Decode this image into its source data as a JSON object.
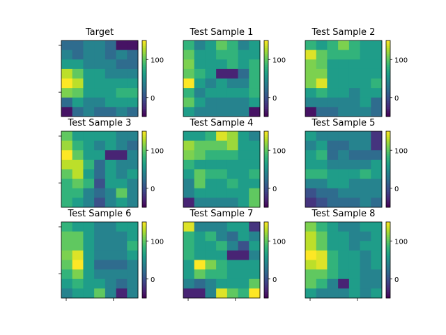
{
  "chart_data": {
    "type": "heatmap",
    "grid": "3x3",
    "colormap": "viridis",
    "vmin": -50,
    "vmax": 150,
    "colorbar_ticks": [
      0,
      100
    ],
    "panels": [
      {
        "title": "Target",
        "values": [
          [
            20,
            20,
            40,
            40,
            20,
            -40,
            -40
          ],
          [
            40,
            20,
            40,
            40,
            20,
            40,
            20
          ],
          [
            60,
            60,
            40,
            40,
            40,
            20,
            20
          ],
          [
            130,
            100,
            60,
            60,
            40,
            40,
            40
          ],
          [
            150,
            130,
            60,
            60,
            60,
            60,
            60
          ],
          [
            110,
            100,
            60,
            60,
            60,
            80,
            80
          ],
          [
            20,
            60,
            40,
            40,
            60,
            60,
            60
          ],
          [
            -40,
            20,
            40,
            20,
            20,
            40,
            20
          ]
        ]
      },
      {
        "title": "Test Sample 1",
        "values": [
          [
            80,
            40,
            60,
            100,
            80,
            40,
            60
          ],
          [
            100,
            60,
            60,
            80,
            80,
            60,
            60
          ],
          [
            110,
            60,
            60,
            60,
            80,
            60,
            80
          ],
          [
            100,
            80,
            60,
            -30,
            -30,
            20,
            80
          ],
          [
            150,
            60,
            40,
            60,
            40,
            40,
            80
          ],
          [
            80,
            40,
            60,
            60,
            60,
            60,
            80
          ],
          [
            100,
            60,
            40,
            40,
            40,
            40,
            60
          ],
          [
            60,
            40,
            40,
            40,
            40,
            40,
            -40
          ]
        ]
      },
      {
        "title": "Test Sample 2",
        "values": [
          [
            80,
            60,
            80,
            110,
            80,
            60,
            60
          ],
          [
            140,
            100,
            80,
            80,
            80,
            60,
            60
          ],
          [
            110,
            100,
            60,
            60,
            60,
            60,
            60
          ],
          [
            110,
            110,
            60,
            60,
            60,
            60,
            60
          ],
          [
            110,
            140,
            60,
            60,
            60,
            60,
            80
          ],
          [
            60,
            80,
            60,
            60,
            40,
            60,
            60
          ],
          [
            40,
            40,
            40,
            40,
            40,
            60,
            20
          ],
          [
            -40,
            20,
            20,
            40,
            40,
            40,
            20
          ]
        ]
      },
      {
        "title": "Test Sample 3",
        "values": [
          [
            100,
            60,
            60,
            60,
            60,
            40,
            40
          ],
          [
            120,
            80,
            60,
            40,
            60,
            40,
            20
          ],
          [
            150,
            100,
            60,
            60,
            -30,
            -30,
            40
          ],
          [
            130,
            130,
            80,
            20,
            60,
            40,
            40
          ],
          [
            100,
            130,
            60,
            20,
            60,
            40,
            60
          ],
          [
            80,
            100,
            80,
            0,
            60,
            60,
            40
          ],
          [
            80,
            80,
            40,
            20,
            40,
            100,
            40
          ],
          [
            80,
            60,
            40,
            0,
            40,
            60,
            40
          ]
        ]
      },
      {
        "title": "Test Sample 4",
        "values": [
          [
            60,
            60,
            80,
            140,
            120,
            60,
            40
          ],
          [
            120,
            100,
            100,
            100,
            120,
            60,
            60
          ],
          [
            110,
            100,
            80,
            80,
            80,
            60,
            60
          ],
          [
            80,
            60,
            60,
            60,
            60,
            60,
            60
          ],
          [
            60,
            100,
            80,
            80,
            60,
            60,
            80
          ],
          [
            40,
            100,
            60,
            60,
            80,
            60,
            60
          ],
          [
            40,
            60,
            60,
            60,
            60,
            60,
            100
          ],
          [
            -30,
            40,
            40,
            40,
            40,
            60,
            100
          ]
        ]
      },
      {
        "title": "Test Sample 5",
        "values": [
          [
            60,
            40,
            40,
            40,
            40,
            40,
            -20
          ],
          [
            40,
            60,
            20,
            20,
            40,
            40,
            -20
          ],
          [
            60,
            80,
            20,
            40,
            20,
            20,
            20
          ],
          [
            60,
            60,
            40,
            40,
            40,
            40,
            60
          ],
          [
            80,
            80,
            60,
            60,
            60,
            80,
            60
          ],
          [
            40,
            40,
            60,
            60,
            40,
            40,
            40
          ],
          [
            0,
            20,
            20,
            40,
            40,
            40,
            40
          ],
          [
            -20,
            0,
            20,
            20,
            20,
            40,
            20
          ]
        ]
      },
      {
        "title": "Test Sample 6",
        "values": [
          [
            80,
            60,
            60,
            40,
            40,
            60,
            60
          ],
          [
            100,
            100,
            60,
            40,
            40,
            40,
            60
          ],
          [
            100,
            100,
            60,
            40,
            40,
            40,
            80
          ],
          [
            110,
            140,
            60,
            40,
            40,
            40,
            60
          ],
          [
            100,
            150,
            60,
            20,
            20,
            20,
            40
          ],
          [
            80,
            110,
            60,
            40,
            40,
            40,
            40
          ],
          [
            60,
            80,
            60,
            60,
            40,
            20,
            40
          ],
          [
            40,
            60,
            60,
            100,
            40,
            -30,
            40
          ]
        ]
      },
      {
        "title": "Test Sample 7",
        "values": [
          [
            140,
            40,
            40,
            40,
            60,
            60,
            -20
          ],
          [
            80,
            60,
            80,
            40,
            20,
            60,
            40
          ],
          [
            80,
            60,
            60,
            80,
            40,
            0,
            60
          ],
          [
            80,
            60,
            60,
            60,
            -30,
            -30,
            40
          ],
          [
            60,
            150,
            110,
            80,
            60,
            60,
            60
          ],
          [
            60,
            100,
            80,
            80,
            60,
            60,
            60
          ],
          [
            40,
            20,
            40,
            60,
            60,
            60,
            100
          ],
          [
            -30,
            -30,
            40,
            140,
            100,
            80,
            150
          ]
        ]
      },
      {
        "title": "Test Sample 8",
        "values": [
          [
            110,
            80,
            60,
            40,
            40,
            60,
            60
          ],
          [
            130,
            100,
            60,
            60,
            40,
            40,
            60
          ],
          [
            130,
            100,
            60,
            60,
            40,
            60,
            60
          ],
          [
            150,
            140,
            80,
            60,
            60,
            40,
            60
          ],
          [
            130,
            140,
            80,
            60,
            60,
            40,
            60
          ],
          [
            100,
            100,
            80,
            60,
            60,
            40,
            40
          ],
          [
            100,
            80,
            40,
            -30,
            60,
            40,
            40
          ],
          [
            60,
            40,
            40,
            40,
            60,
            40,
            60
          ]
        ]
      }
    ]
  }
}
